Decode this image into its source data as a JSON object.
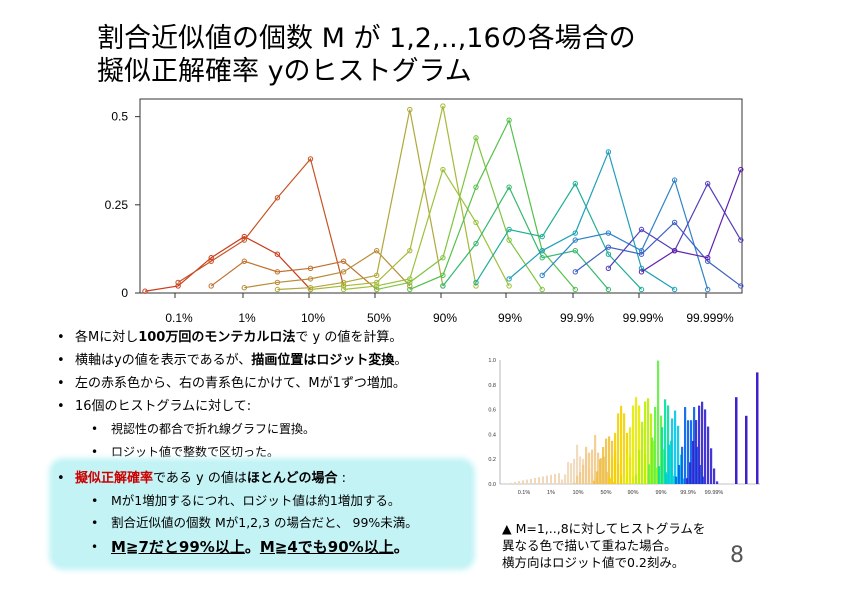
{
  "title": {
    "line1": "割合近似値の個数 M が 1,2,..,16の各場合の",
    "line2": "擬似正解確率 yのヒストグラム"
  },
  "chart_data": [
    {
      "type": "line",
      "x_ticks": [
        "0.1%",
        "1%",
        "10%",
        "50%",
        "90%",
        "99%",
        "99.9%",
        "99.99%",
        "99.999%"
      ],
      "y_ticks": [
        "0",
        "0.25",
        "0.5"
      ],
      "ylim": [
        0,
        0.55
      ],
      "series_colors": [
        "#cc3a1a",
        "#c65424",
        "#c0702e",
        "#b88c36",
        "#b0a83c",
        "#a8b83a",
        "#9cc23a",
        "#7ec440",
        "#56c04a",
        "#34b86c",
        "#1eae96",
        "#20a0b8",
        "#2f82c8",
        "#3f60c4",
        "#5040bc",
        "#6020b0"
      ],
      "series": [
        {
          "x": [
            -2,
            -1,
            0,
            1,
            2,
            3
          ],
          "y": [
            0.005,
            0.02,
            0.1,
            0.16,
            0.11,
            0.01
          ]
        },
        {
          "x": [
            -1,
            0,
            1,
            2,
            3,
            4
          ],
          "y": [
            0.03,
            0.09,
            0.15,
            0.27,
            0.38,
            0.02
          ]
        },
        {
          "x": [
            0,
            1,
            2,
            3,
            4,
            5
          ],
          "y": [
            0.02,
            0.09,
            0.06,
            0.07,
            0.09,
            0.01
          ]
        },
        {
          "x": [
            1,
            2,
            3,
            4,
            5,
            6
          ],
          "y": [
            0.015,
            0.03,
            0.04,
            0.06,
            0.12,
            0.02
          ]
        },
        {
          "x": [
            2,
            3,
            4,
            5,
            6,
            7
          ],
          "y": [
            0.01,
            0.015,
            0.03,
            0.05,
            0.52,
            0.02
          ]
        },
        {
          "x": [
            3,
            4,
            5,
            6,
            7,
            8
          ],
          "y": [
            0.01,
            0.02,
            0.03,
            0.12,
            0.53,
            0.02
          ]
        },
        {
          "x": [
            4,
            5,
            6,
            7,
            8,
            9
          ],
          "y": [
            0.01,
            0.02,
            0.04,
            0.35,
            0.2,
            0.02
          ]
        },
        {
          "x": [
            5,
            6,
            7,
            8,
            9,
            10
          ],
          "y": [
            0.01,
            0.03,
            0.1,
            0.44,
            0.15,
            0.01
          ]
        },
        {
          "x": [
            6,
            7,
            8,
            9,
            10,
            11
          ],
          "y": [
            0.01,
            0.05,
            0.3,
            0.49,
            0.12,
            0.01
          ]
        },
        {
          "x": [
            7,
            8,
            9,
            10,
            11,
            12
          ],
          "y": [
            0.02,
            0.14,
            0.3,
            0.1,
            0.12,
            0.01
          ]
        },
        {
          "x": [
            8,
            9,
            10,
            11,
            12,
            13
          ],
          "y": [
            0.03,
            0.18,
            0.16,
            0.31,
            0.11,
            0.01
          ]
        },
        {
          "x": [
            9,
            10,
            11,
            12,
            13,
            14
          ],
          "y": [
            0.04,
            0.12,
            0.17,
            0.4,
            0.07,
            0.01
          ]
        },
        {
          "x": [
            10,
            11,
            12,
            13,
            14,
            15
          ],
          "y": [
            0.05,
            0.15,
            0.17,
            0.12,
            0.32,
            0.01
          ]
        },
        {
          "x": [
            11,
            12,
            13,
            14,
            15,
            16
          ],
          "y": [
            0.06,
            0.13,
            0.11,
            0.2,
            0.09,
            0.02
          ]
        },
        {
          "x": [
            12,
            13,
            14,
            15,
            16
          ],
          "y": [
            0.07,
            0.18,
            0.12,
            0.31,
            0.15
          ]
        },
        {
          "x": [
            13,
            14,
            15,
            16
          ],
          "y": [
            0.06,
            0.12,
            0.1,
            0.35
          ]
        }
      ]
    },
    {
      "type": "bar",
      "x_ticks": [
        "0.1%",
        "1%",
        "10%",
        "50%",
        "90%",
        "99%",
        "99.9%",
        "99.99%"
      ],
      "y_ticks": [
        "0.0",
        "0.2",
        "0.4",
        "0.6",
        "0.8",
        "1.0"
      ],
      "ylim": [
        0,
        1.0
      ]
    }
  ],
  "bullets": {
    "b1": {
      "pre": "各Mに対し",
      "bold": "100万回のモンテカルロ法",
      "post": "で y の値を計算。"
    },
    "b2": {
      "pre": "横軸はyの値を表示であるが、",
      "bold": "描画位置はロジット変換",
      "post": "。"
    },
    "b3": {
      "text": "左の赤系色から、右の青系色にかけて、Mが1ずつ増加。"
    },
    "b4": {
      "text": "16個のヒストグラムに対して:"
    },
    "b4a": {
      "text": "視認性の都合で折れ線グラフに置換。"
    },
    "b4b": {
      "text": "ロジット値で整数で区切った。"
    }
  },
  "highlight": {
    "red": "擬似正解確率",
    "mid": "である y の値は",
    "bold": "ほとんどの場合",
    "end": " :",
    "s1": "Mが1増加するにつれ、ロジット値は約1増加する。",
    "s2": "割合近似値の個数 Mが1,2,3 の場合だと、 99%未満。",
    "s3a": "M≧7だと99%以上",
    "s3mid": "。",
    "s3b": "M≧4でも90%以上",
    "s3end": "。"
  },
  "caption": {
    "line1": "▲ M=1,..,8に対してヒストグラムを",
    "line2": "異なる色で描いて重ねた場合。",
    "line3": "横方向はロジット値で0.2刻み。"
  },
  "page_number": "8"
}
